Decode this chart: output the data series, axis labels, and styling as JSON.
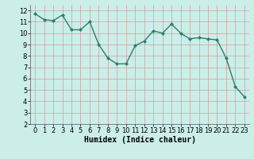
{
  "x": [
    0,
    1,
    2,
    3,
    4,
    5,
    6,
    7,
    8,
    9,
    10,
    11,
    12,
    13,
    14,
    15,
    16,
    17,
    18,
    19,
    20,
    21,
    22,
    23
  ],
  "y": [
    11.7,
    11.2,
    11.1,
    11.6,
    10.3,
    10.3,
    11.0,
    9.0,
    7.8,
    7.3,
    7.3,
    8.9,
    9.3,
    10.2,
    10.0,
    10.8,
    10.0,
    9.5,
    9.6,
    9.5,
    9.4,
    7.8,
    5.3,
    4.4
  ],
  "line_color": "#2e7d6e",
  "marker": "D",
  "marker_size": 2.0,
  "bg_color": "#cceee8",
  "grid_color": "#c8a0a0",
  "xlabel": "Humidex (Indice chaleur)",
  "ylim": [
    2,
    12.5
  ],
  "xlim": [
    -0.5,
    23.5
  ],
  "yticks": [
    2,
    3,
    4,
    5,
    6,
    7,
    8,
    9,
    10,
    11,
    12
  ],
  "xticks": [
    0,
    1,
    2,
    3,
    4,
    5,
    6,
    7,
    8,
    9,
    10,
    11,
    12,
    13,
    14,
    15,
    16,
    17,
    18,
    19,
    20,
    21,
    22,
    23
  ],
  "xlabel_fontsize": 7,
  "tick_fontsize": 6,
  "linewidth": 1.0
}
